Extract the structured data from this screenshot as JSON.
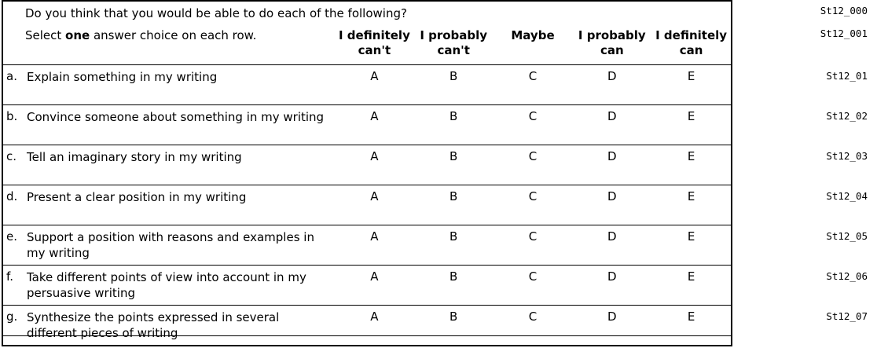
{
  "survey": {
    "question": "Do you think that you would be able to do each of the following?",
    "question_code": "St12_000",
    "instruction": {
      "pre": "Select ",
      "bold": "one",
      "post": " answer choice on each row."
    },
    "instruction_code": "St12_001",
    "columns": [
      [
        "I definitely",
        "can't"
      ],
      [
        "I probably",
        "can't"
      ],
      [
        "Maybe"
      ],
      [
        "I probably",
        "can"
      ],
      [
        "I definitely",
        "can"
      ]
    ],
    "rows": [
      {
        "letter": "a.",
        "text": "Explain something in my writing",
        "options": [
          "A",
          "B",
          "C",
          "D",
          "E"
        ],
        "code": "St12_01"
      },
      {
        "letter": "b.",
        "text": "Convince someone about something in my writing",
        "options": [
          "A",
          "B",
          "C",
          "D",
          "E"
        ],
        "code": "St12_02"
      },
      {
        "letter": "c.",
        "text": "Tell an imaginary story in my writing",
        "options": [
          "A",
          "B",
          "C",
          "D",
          "E"
        ],
        "code": "St12_03"
      },
      {
        "letter": "d.",
        "text": "Present a clear position in my writing",
        "options": [
          "A",
          "B",
          "C",
          "D",
          "E"
        ],
        "code": "St12_04"
      },
      {
        "letter": "e.",
        "text": "Support a position with reasons and examples in my writing",
        "options": [
          "A",
          "B",
          "C",
          "D",
          "E"
        ],
        "code": "St12_05"
      },
      {
        "letter": "f.",
        "text": "Take different points of view into account in my persuasive writing",
        "options": [
          "A",
          "B",
          "C",
          "D",
          "E"
        ],
        "code": "St12_06"
      },
      {
        "letter": "g.",
        "text": "Synthesize the points expressed in several different pieces of writing",
        "options": [
          "A",
          "B",
          "C",
          "D",
          "E"
        ],
        "code": "St12_07"
      }
    ]
  }
}
